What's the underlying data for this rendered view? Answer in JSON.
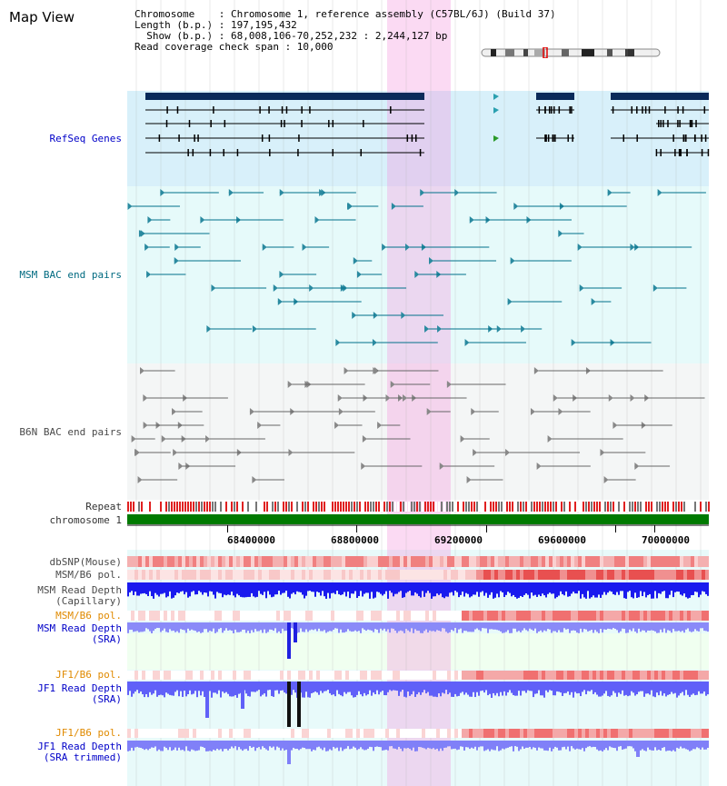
{
  "title": "Map View",
  "header": {
    "line1": "Chromosome    : Chromosome 1, reference assembly (C57BL/6J) (Build 37)",
    "line2": "Length (b.p.) : 197,195,432",
    "line3": "  Show (b.p.) : 68,008,106-70,252,232 : 2,244,127 bp",
    "line4": "Read coverage check span : 10,000"
  },
  "tracks": {
    "refseq": "RefSeq Genes",
    "msm_bac": "MSM BAC end pairs",
    "b6n_bac": "B6N BAC end pairs",
    "repeat": "Repeat",
    "chromosome": "chromosome 1",
    "dbsnp": "dbSNP(Mouse)",
    "msm_pol": "MSM/B6 pol.",
    "msm_depth_cap_1": "MSM Read Depth",
    "msm_depth_cap_2": "(Capillary)",
    "msm_pol2": "MSM/B6 pol.",
    "msm_depth_sra_1": "MSM Read Depth",
    "msm_depth_sra_2": "(SRA)",
    "jf1_pol": "JF1/B6 pol.",
    "jf1_depth_sra_1": "JF1 Read Depth",
    "jf1_depth_sra_2": "(SRA)",
    "jf1_pol2": "JF1/B6 pol.",
    "jf1_depth_trim_1": "JF1 Read Depth",
    "jf1_depth_trim_2": "(SRA trimmed)"
  },
  "ruler": [
    "68400000",
    "68800000",
    "69200000",
    "69600000",
    "70000000"
  ],
  "colors": {
    "highlight": "#f496dc",
    "refseq_bg": "#d8f0fa",
    "gene": "#0a2a5a",
    "msm_bac": "#00708a",
    "b6n_bac": "#666666",
    "chromosome": "#007a00",
    "depth": "#3030ff"
  }
}
